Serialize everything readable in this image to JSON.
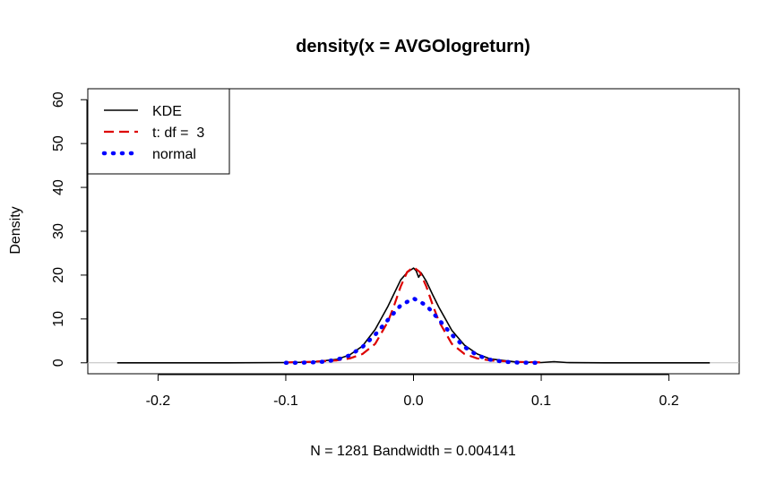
{
  "chart_data": {
    "type": "line",
    "title": "density(x = AVGOlogreturn)",
    "xlabel": "N = 1281   Bandwidth = 0.004141",
    "ylabel": "Density",
    "xlim": [
      -0.255,
      0.255
    ],
    "ylim": [
      -2.5,
      62.5
    ],
    "x_ticks": [
      -0.2,
      -0.1,
      0.0,
      0.1,
      0.2
    ],
    "x_tick_labels": [
      "-0.2",
      "-0.1",
      "0.0",
      "0.1",
      "0.2"
    ],
    "y_ticks": [
      0,
      10,
      20,
      30,
      40,
      50,
      60
    ],
    "y_tick_labels": [
      "0",
      "10",
      "20",
      "30",
      "40",
      "50",
      "60"
    ],
    "legend_position": "top-left",
    "grid": false,
    "zero_line": true,
    "series": [
      {
        "name": "KDE",
        "color": "#000000",
        "style": "solid",
        "x": [
          -0.232,
          -0.15,
          -0.1,
          -0.08,
          -0.06,
          -0.05,
          -0.04,
          -0.03,
          -0.02,
          -0.015,
          -0.01,
          -0.005,
          0.0,
          0.002,
          0.004,
          0.006,
          0.01,
          0.015,
          0.02,
          0.03,
          0.04,
          0.05,
          0.06,
          0.08,
          0.1,
          0.11,
          0.12,
          0.15,
          0.232
        ],
        "y": [
          0.0,
          0.0,
          0.05,
          0.15,
          0.8,
          1.8,
          3.8,
          7.6,
          12.9,
          15.9,
          18.9,
          20.6,
          21.6,
          21.0,
          19.5,
          20.5,
          18.6,
          15.5,
          12.6,
          7.4,
          4.0,
          2.0,
          0.9,
          0.2,
          0.05,
          0.25,
          0.05,
          0.0,
          0.0
        ]
      },
      {
        "name": "t: df =  3",
        "color": "#dd0000",
        "style": "dashed",
        "x": [
          -0.1,
          -0.08,
          -0.06,
          -0.05,
          -0.04,
          -0.03,
          -0.02,
          -0.015,
          -0.01,
          -0.005,
          0.0,
          0.005,
          0.01,
          0.015,
          0.02,
          0.03,
          0.04,
          0.05,
          0.06,
          0.08,
          0.1
        ],
        "y": [
          0.1,
          0.22,
          0.55,
          1.0,
          2.0,
          4.3,
          9.4,
          13.2,
          17.4,
          20.7,
          21.8,
          20.7,
          17.4,
          13.2,
          9.4,
          4.3,
          2.0,
          1.0,
          0.55,
          0.22,
          0.1
        ]
      },
      {
        "name": "normal",
        "color": "#0000ff",
        "style": "dotted",
        "x": [
          -0.1,
          -0.09,
          -0.08,
          -0.07,
          -0.06,
          -0.05,
          -0.04,
          -0.03,
          -0.02,
          -0.01,
          0.0,
          0.01,
          0.02,
          0.03,
          0.04,
          0.05,
          0.06,
          0.07,
          0.08,
          0.09,
          0.1
        ],
        "y": [
          0.0,
          0.02,
          0.08,
          0.25,
          0.7,
          1.7,
          3.6,
          6.4,
          9.8,
          13.1,
          14.7,
          13.1,
          9.8,
          6.4,
          3.6,
          1.7,
          0.7,
          0.25,
          0.08,
          0.02,
          0.0
        ]
      }
    ]
  }
}
